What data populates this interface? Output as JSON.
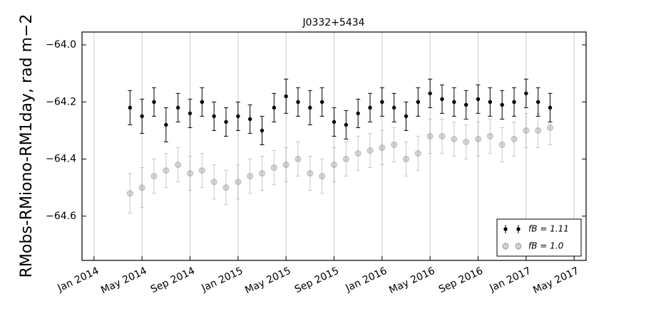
{
  "chart_data": {
    "type": "errorbar",
    "title": "J0332+5434",
    "y_label": "RMobs-RMiono-RM1day, rad m−2",
    "x": [
      "2014-04",
      "2014-05",
      "2014-06",
      "2014-07",
      "2014-08",
      "2014-09",
      "2014-10",
      "2014-11",
      "2014-12",
      "2015-01",
      "2015-02",
      "2015-03",
      "2015-04",
      "2015-05",
      "2015-06",
      "2015-07",
      "2015-08",
      "2015-09",
      "2015-10",
      "2015-11",
      "2015-12",
      "2016-01",
      "2016-02",
      "2016-03",
      "2016-04",
      "2016-05",
      "2016-06",
      "2016-07",
      "2016-08",
      "2016-09",
      "2016-10",
      "2016-11",
      "2016-12",
      "2017-01",
      "2017-02",
      "2017-03"
    ],
    "series": [
      {
        "name": "fB = 1.11",
        "color": "#000000",
        "values": [
          -64.22,
          -64.25,
          -64.2,
          -64.28,
          -64.22,
          -64.24,
          -64.2,
          -64.25,
          -64.27,
          -64.25,
          -64.26,
          -64.3,
          -64.22,
          -64.18,
          -64.2,
          -64.22,
          -64.2,
          -64.27,
          -64.28,
          -64.24,
          -64.22,
          -64.2,
          -64.22,
          -64.25,
          -64.2,
          -64.17,
          -64.19,
          -64.2,
          -64.21,
          -64.19,
          -64.2,
          -64.21,
          -64.2,
          -64.17,
          -64.2,
          -64.22
        ],
        "errors": [
          0.06,
          0.06,
          0.05,
          0.06,
          0.05,
          0.05,
          0.05,
          0.05,
          0.05,
          0.05,
          0.05,
          0.05,
          0.05,
          0.06,
          0.05,
          0.06,
          0.05,
          0.05,
          0.05,
          0.05,
          0.05,
          0.05,
          0.05,
          0.05,
          0.05,
          0.05,
          0.05,
          0.05,
          0.05,
          0.05,
          0.05,
          0.05,
          0.05,
          0.05,
          0.05,
          0.05
        ]
      },
      {
        "name": "fB = 1.0",
        "color": "#999999",
        "values": [
          -64.52,
          -64.5,
          -64.46,
          -64.44,
          -64.42,
          -64.45,
          -64.44,
          -64.48,
          -64.5,
          -64.48,
          -64.46,
          -64.45,
          -64.43,
          -64.42,
          -64.4,
          -64.45,
          -64.46,
          -64.42,
          -64.4,
          -64.38,
          -64.37,
          -64.36,
          -64.35,
          -64.4,
          -64.38,
          -64.32,
          -64.32,
          -64.33,
          -64.34,
          -64.33,
          -64.32,
          -64.35,
          -64.33,
          -64.3,
          -64.3,
          -64.29
        ],
        "errors": [
          0.07,
          0.07,
          0.06,
          0.06,
          0.06,
          0.06,
          0.06,
          0.06,
          0.06,
          0.06,
          0.06,
          0.06,
          0.06,
          0.06,
          0.06,
          0.06,
          0.06,
          0.06,
          0.06,
          0.06,
          0.06,
          0.06,
          0.06,
          0.06,
          0.06,
          0.06,
          0.06,
          0.06,
          0.06,
          0.06,
          0.06,
          0.06,
          0.06,
          0.06,
          0.06,
          0.06
        ]
      }
    ],
    "xlim": [
      "2013-12",
      "2017-06"
    ],
    "xticks": [
      {
        "value": "2014-01",
        "label": "Jan 2014"
      },
      {
        "value": "2014-05",
        "label": "May 2014"
      },
      {
        "value": "2014-09",
        "label": "Sep 2014"
      },
      {
        "value": "2015-01",
        "label": "Jan 2015"
      },
      {
        "value": "2015-05",
        "label": "May 2015"
      },
      {
        "value": "2015-09",
        "label": "Sep 2015"
      },
      {
        "value": "2016-01",
        "label": "Jan 2016"
      },
      {
        "value": "2016-05",
        "label": "May 2016"
      },
      {
        "value": "2016-09",
        "label": "Sep 2016"
      },
      {
        "value": "2017-01",
        "label": "Jan 2017"
      },
      {
        "value": "2017-05",
        "label": "May 2017"
      }
    ],
    "ylim": [
      -64.755,
      -63.955
    ],
    "yticks": [
      {
        "value": -64.0,
        "label": "−64.0"
      },
      {
        "value": -64.2,
        "label": "−64.2"
      },
      {
        "value": -64.4,
        "label": "−64.4"
      },
      {
        "value": -64.6,
        "label": "−64.6"
      }
    ],
    "grid": "x",
    "legend": "lower right"
  }
}
